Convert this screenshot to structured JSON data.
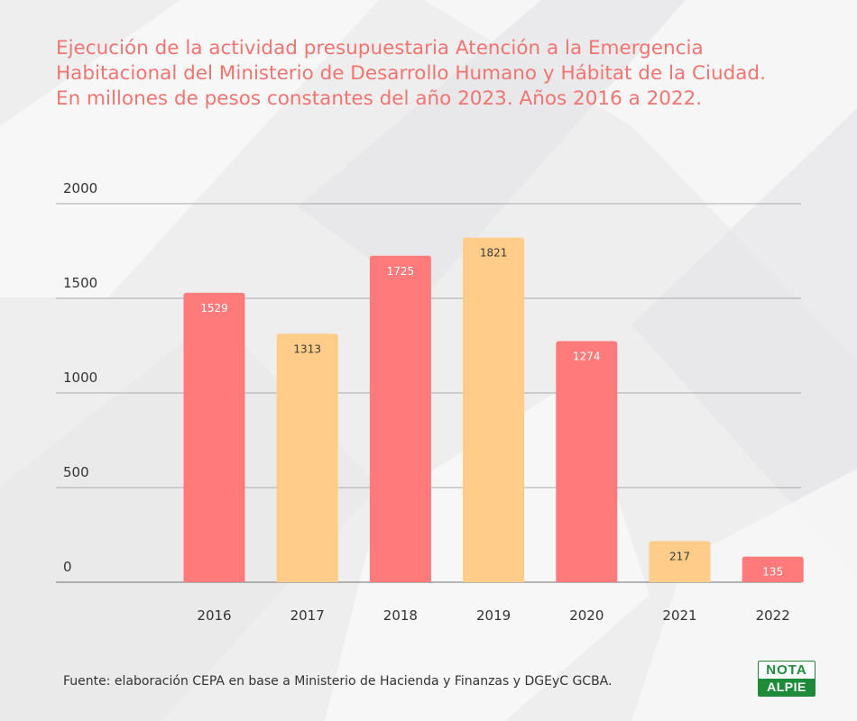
{
  "title": {
    "line1": "Ejecución de la actividad presupuestaria Atención a la Emergencia",
    "line2": "Habitacional del Ministerio de Desarrollo Humano y Hábitat de la Ciudad.",
    "line3": "En millones de pesos constantes del año 2023. Años 2016 a 2022."
  },
  "source": "Fuente: elaboración CEPA en base a Ministerio de Hacienda y Finanzas y DGEyC GCBA.",
  "logo": {
    "top": "NOTA",
    "bottom": "ALPIE"
  },
  "colors": {
    "coral": "#ff7a7a",
    "peach": "#ffcc8a",
    "title": "#f27470",
    "logo_green": "#1e8b3a"
  },
  "chart_data": {
    "type": "bar",
    "categories": [
      "2016",
      "2017",
      "2018",
      "2019",
      "2020",
      "2021",
      "2022"
    ],
    "values": [
      1529,
      1313,
      1725,
      1821,
      1274,
      217,
      135
    ],
    "bar_colors": [
      "#ff7a7a",
      "#ffcc8a",
      "#ff7a7a",
      "#ffcc8a",
      "#ff7a7a",
      "#ffcc8a",
      "#ff7a7a"
    ],
    "ylim": [
      0,
      2000
    ],
    "yticks": [
      "0",
      "500",
      "1000",
      "1500",
      "2000"
    ],
    "title": "Ejecución de la actividad presupuestaria Atención a la Emergencia Habitacional del Ministerio de Desarrollo Humano y Hábitat de la Ciudad. En millones de pesos constantes del año 2023. Años 2016 a 2022.",
    "xlabel": "",
    "ylabel": "",
    "grid": true,
    "legend": "none"
  }
}
